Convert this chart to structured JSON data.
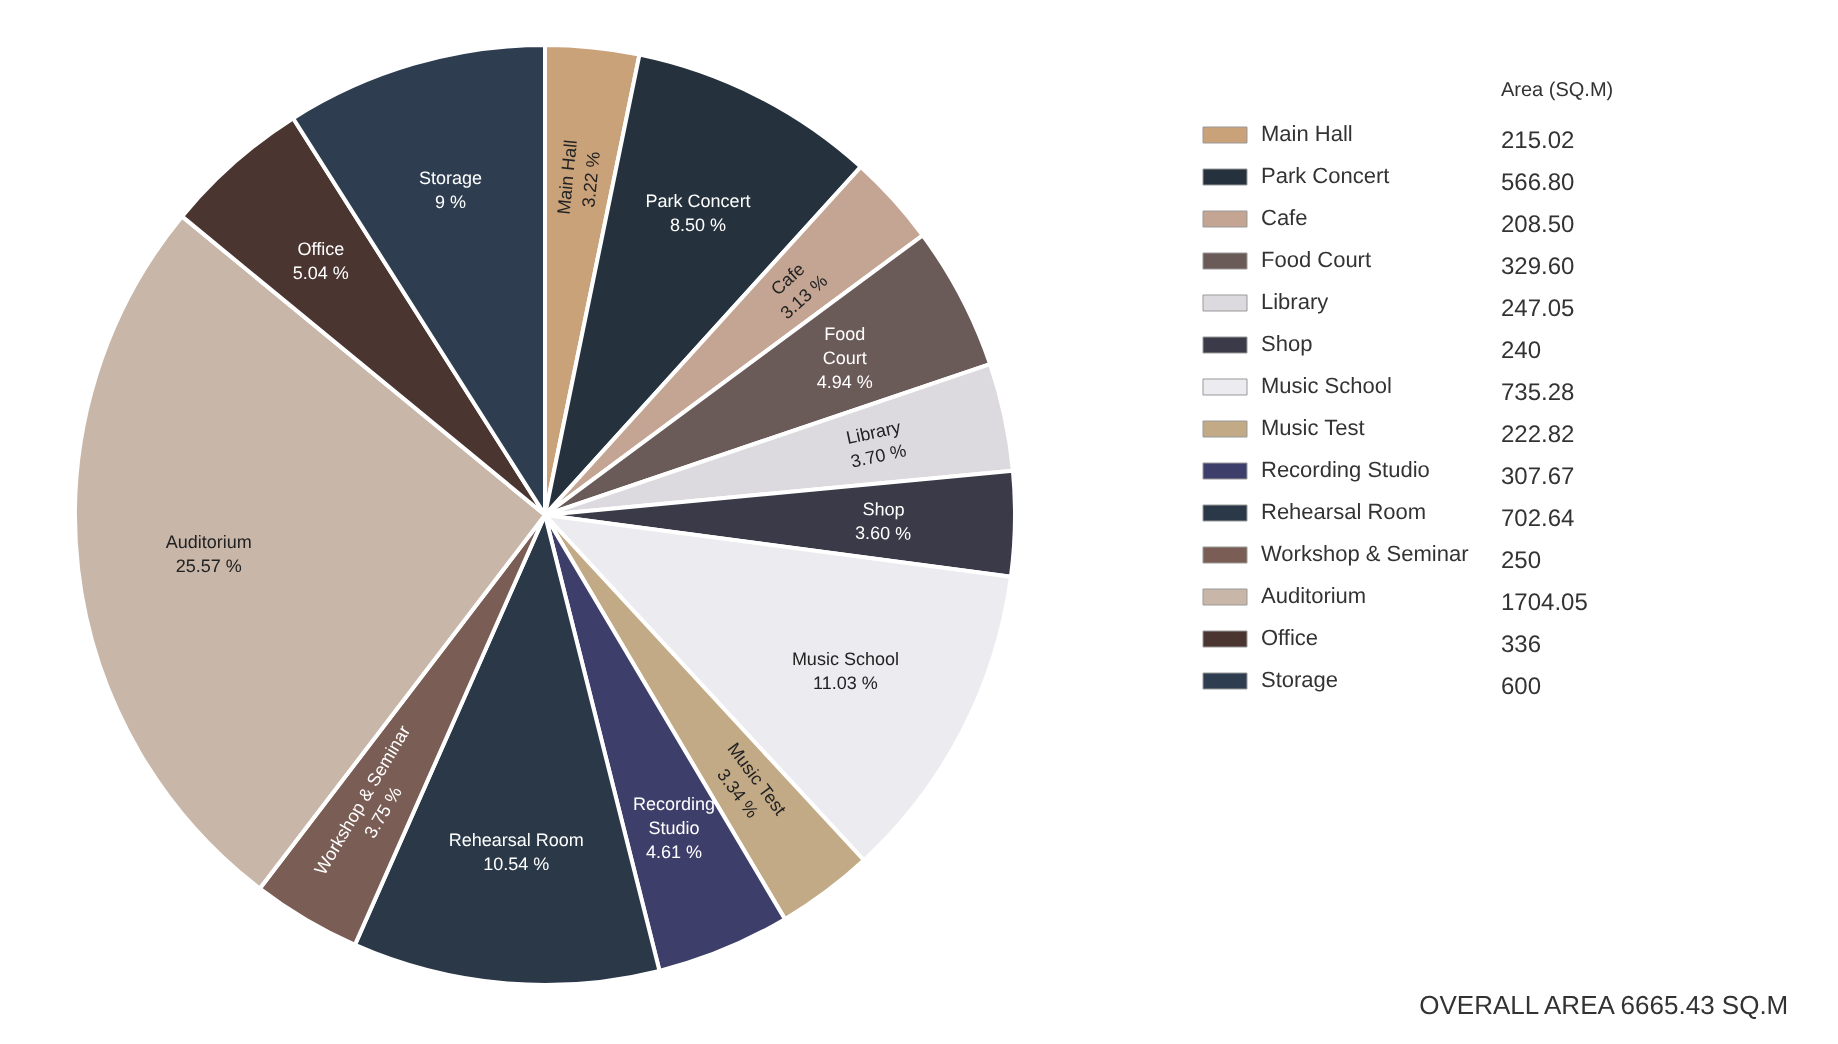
{
  "chart_data": {
    "type": "pie",
    "categories": [
      "Main Hall",
      "Park Concert",
      "Cafe",
      "Food Court",
      "Library",
      "Shop",
      "Music School",
      "Music Test",
      "Recording Studio",
      "Rehearsal Room",
      "Workshop & Seminar",
      "Auditorium",
      "Office",
      "Storage"
    ],
    "values": [
      3.22,
      8.5,
      3.13,
      4.94,
      3.7,
      3.6,
      11.03,
      3.34,
      4.61,
      10.54,
      3.75,
      25.57,
      5.04,
      9
    ],
    "value_labels": [
      "3.22 %",
      "8.50 %",
      "3.13 %",
      "4.94 %",
      "3.70 %",
      "3.60 %",
      "11.03 %",
      "3.34 %",
      "4.61 %",
      "10.54 %",
      "3.75 %",
      "25.57 %",
      "5.04 %",
      "9 %"
    ],
    "colors": [
      "#c9a27a",
      "#25323d",
      "#c4a594",
      "#6a5a58",
      "#dcdadf",
      "#3a3a48",
      "#ececf0",
      "#c2aa86",
      "#3e3e6a",
      "#2a3848",
      "#7a5e55",
      "#c8b6a8",
      "#4a3530",
      "#2e3e50"
    ],
    "legend": "right",
    "annotations": [
      "Area (SQ.M)",
      "215.02",
      "566.80",
      "208.50",
      "329.60",
      "247.05",
      "240",
      "735.28",
      "222.82",
      "307.67",
      "702.64",
      "250",
      "1704.05",
      "336",
      "600",
      "OVERALL AREA    6665.43  SQ.M"
    ]
  }
}
